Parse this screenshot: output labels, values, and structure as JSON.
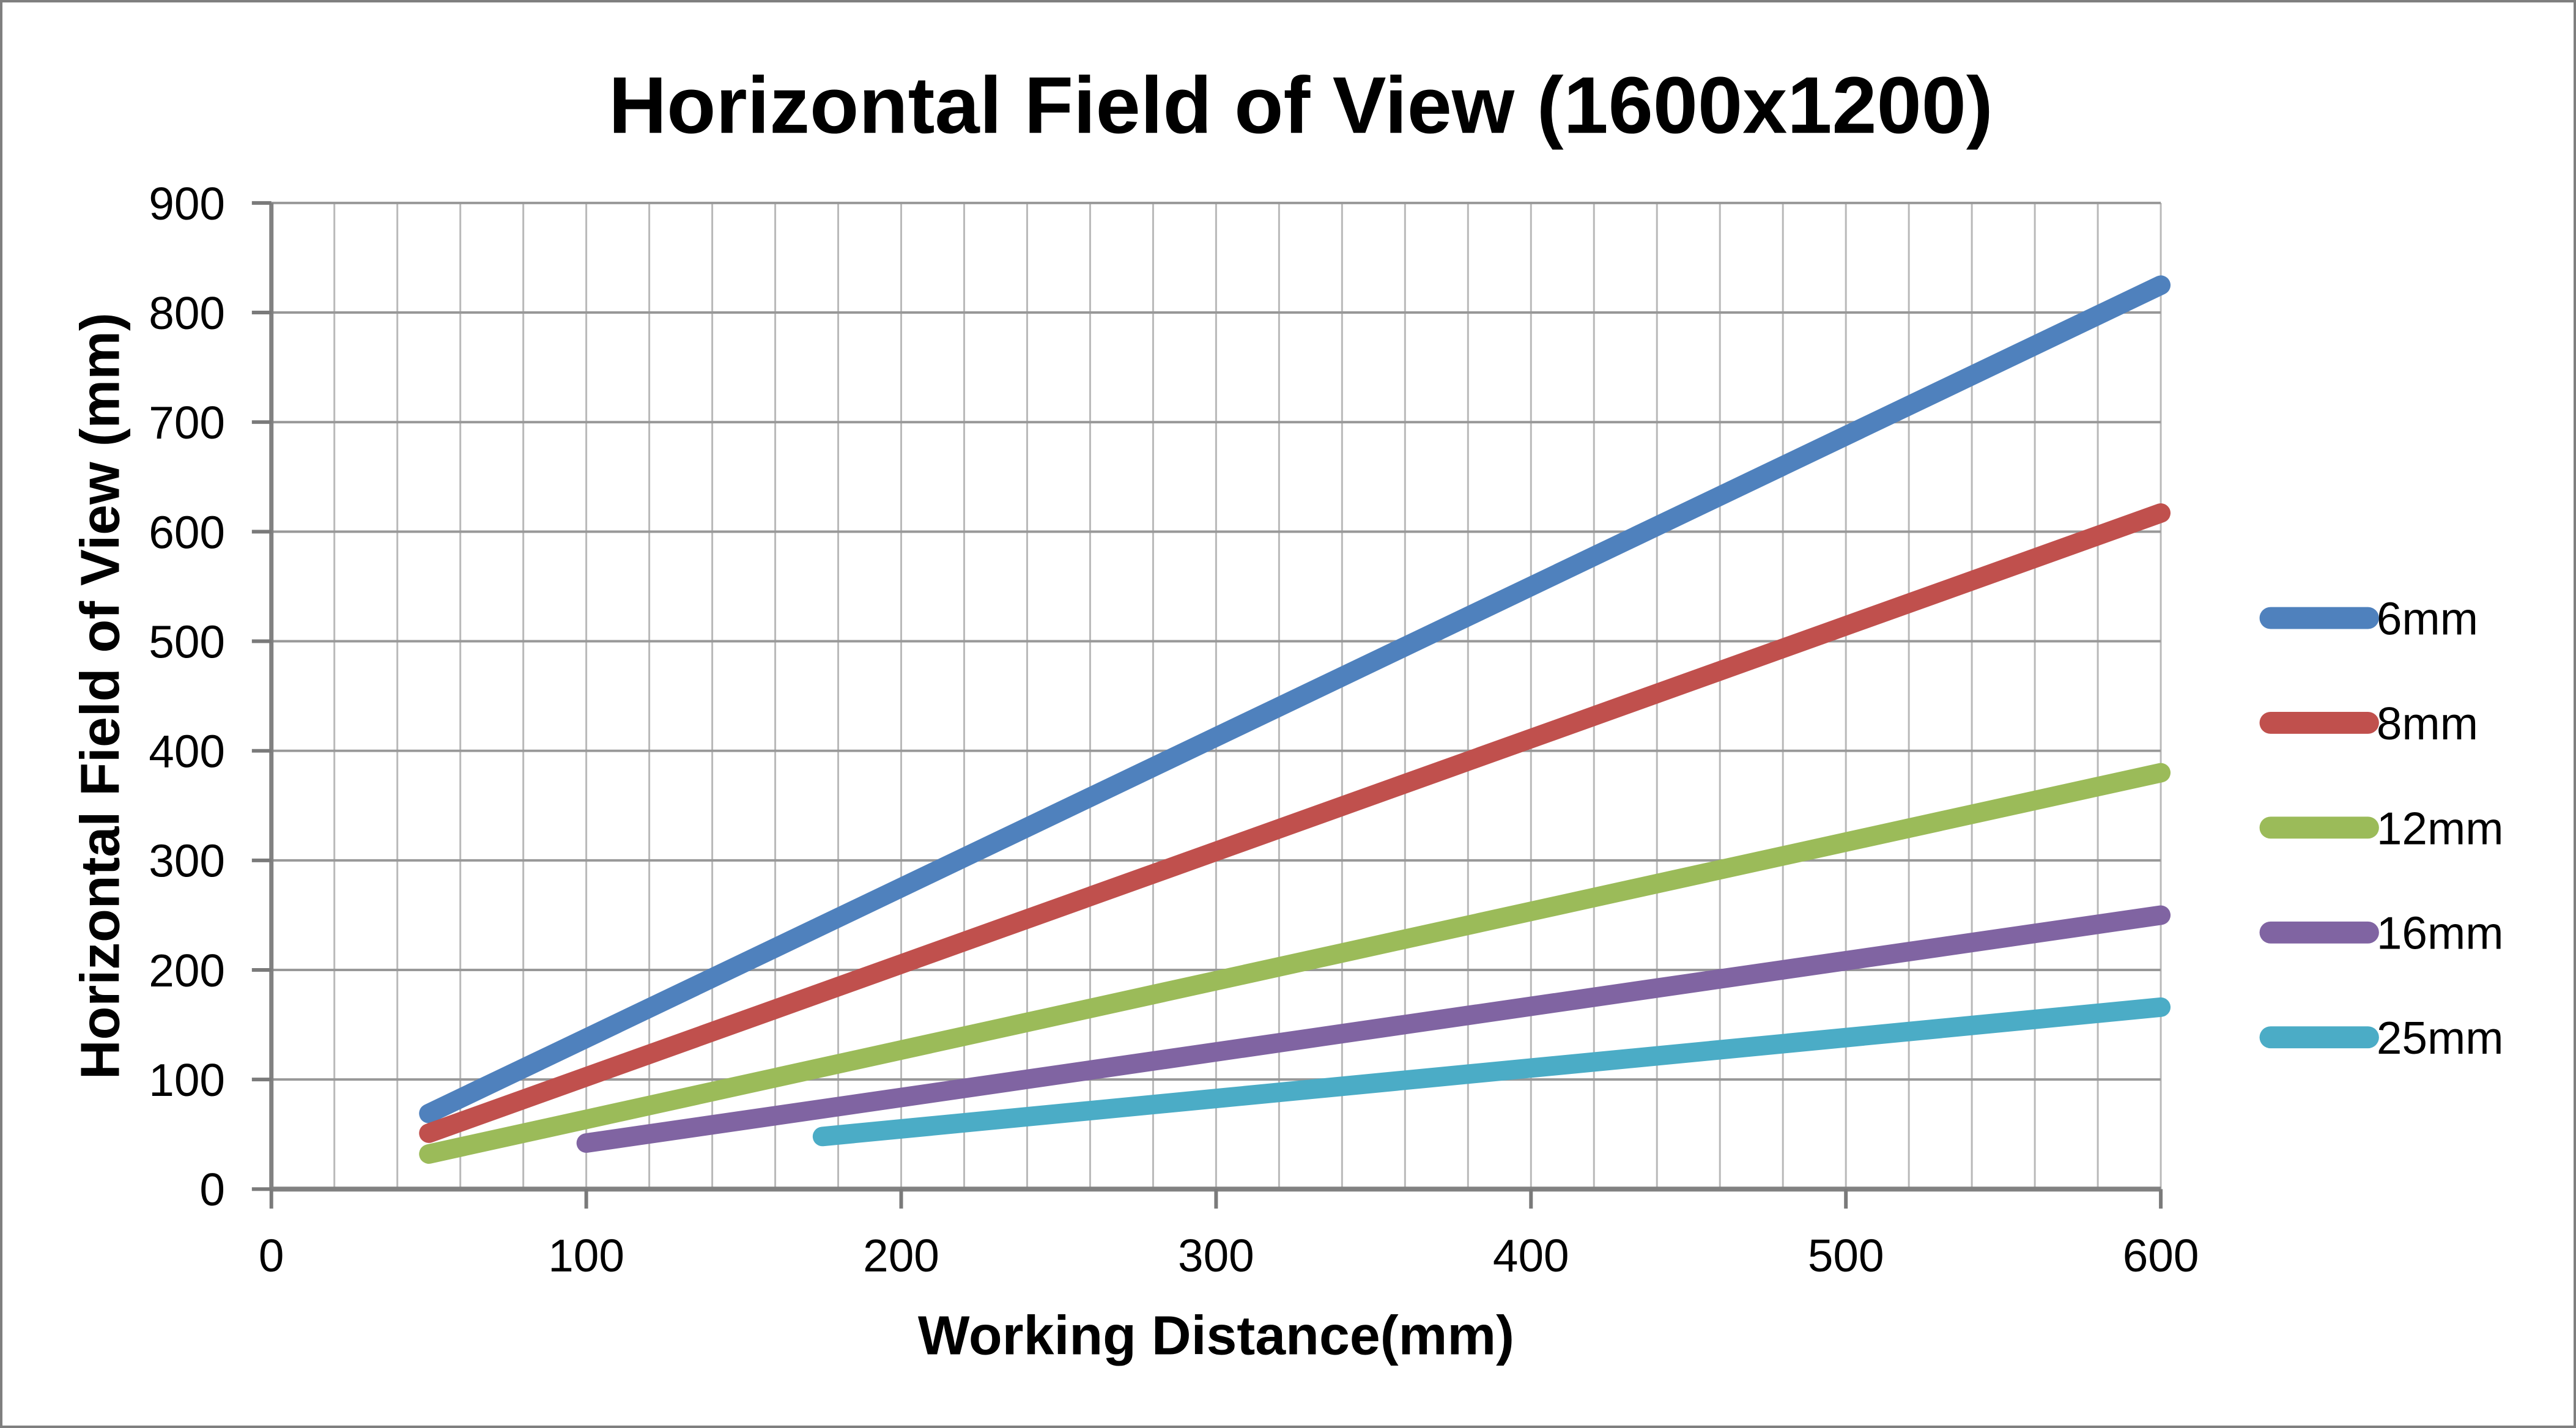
{
  "window": {
    "background": "#ffffff",
    "border_color": "#7f7f7f"
  },
  "chart_data": {
    "type": "line",
    "title": "Horizontal Field of View (1600x1200)",
    "xlabel": "Working Distance(mm)",
    "ylabel": "Horizontal Field of View (mm)",
    "xlim": [
      0,
      600
    ],
    "ylim": [
      0,
      900
    ],
    "x_ticks": [
      0,
      100,
      200,
      300,
      400,
      500,
      600
    ],
    "y_ticks": [
      0,
      100,
      200,
      300,
      400,
      500,
      600,
      700,
      800,
      900
    ],
    "x_minor_gridline_step": 20,
    "y_gridline_step": 100,
    "grid": "on",
    "legend_position": "right",
    "series": [
      {
        "name": "6mm",
        "color": "#4F81BD",
        "points": [
          [
            50,
            69
          ],
          [
            600,
            825
          ]
        ]
      },
      {
        "name": "8mm",
        "color": "#C0504D",
        "points": [
          [
            50,
            51
          ],
          [
            600,
            617
          ]
        ]
      },
      {
        "name": "12mm",
        "color": "#9BBB59",
        "points": [
          [
            50,
            32
          ],
          [
            600,
            380
          ]
        ]
      },
      {
        "name": "16mm",
        "color": "#8064A2",
        "points": [
          [
            100,
            42
          ],
          [
            600,
            250
          ]
        ]
      },
      {
        "name": "25mm",
        "color": "#4BACC6",
        "points": [
          [
            175,
            48
          ],
          [
            600,
            166
          ]
        ]
      }
    ]
  }
}
